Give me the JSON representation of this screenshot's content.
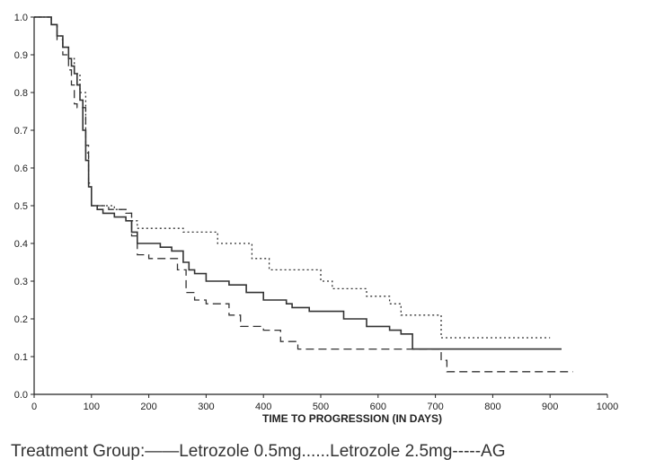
{
  "chart_data": {
    "type": "line",
    "xlabel": "TIME TO PROGRESSION (IN DAYS)",
    "ylabel": "",
    "xlim": [
      0,
      1000
    ],
    "ylim": [
      0.0,
      1.0
    ],
    "xticks": [
      "0",
      "100",
      "200",
      "300",
      "400",
      "500",
      "600",
      "700",
      "800",
      "900",
      "1000"
    ],
    "yticks": [
      "0.0",
      "0.1",
      "0.2",
      "0.3",
      "0.4",
      "0.5",
      "0.6",
      "0.7",
      "0.8",
      "0.9",
      "1.0"
    ],
    "grid": false,
    "step": true,
    "legend_text": "Treatment Group:——Letrozole 0.5mg......Letrozole 2.5mg-----AG",
    "series": [
      {
        "name": "Letrozole 0.5mg",
        "style": "solid",
        "x": [
          0,
          20,
          30,
          40,
          50,
          60,
          65,
          70,
          75,
          80,
          85,
          90,
          95,
          100,
          110,
          120,
          130,
          140,
          150,
          160,
          170,
          180,
          200,
          220,
          240,
          260,
          270,
          280,
          300,
          340,
          370,
          400,
          440,
          450,
          480,
          540,
          580,
          620,
          640,
          660,
          920
        ],
        "y": [
          1.0,
          1.0,
          0.98,
          0.95,
          0.92,
          0.89,
          0.87,
          0.85,
          0.82,
          0.78,
          0.7,
          0.62,
          0.55,
          0.5,
          0.49,
          0.48,
          0.48,
          0.47,
          0.47,
          0.46,
          0.43,
          0.4,
          0.4,
          0.39,
          0.38,
          0.35,
          0.33,
          0.32,
          0.3,
          0.29,
          0.27,
          0.25,
          0.24,
          0.23,
          0.22,
          0.2,
          0.18,
          0.17,
          0.16,
          0.12,
          0.12
        ]
      },
      {
        "name": "Letrozole 2.5mg",
        "style": "dotted",
        "x": [
          0,
          20,
          30,
          40,
          50,
          60,
          70,
          80,
          90,
          95,
          100,
          120,
          140,
          160,
          170,
          180,
          260,
          320,
          380,
          410,
          460,
          500,
          520,
          580,
          620,
          640,
          700,
          710,
          900
        ],
        "y": [
          1.0,
          1.0,
          0.98,
          0.95,
          0.92,
          0.89,
          0.85,
          0.8,
          0.64,
          0.55,
          0.5,
          0.5,
          0.49,
          0.48,
          0.46,
          0.44,
          0.43,
          0.4,
          0.36,
          0.33,
          0.33,
          0.3,
          0.28,
          0.26,
          0.24,
          0.21,
          0.21,
          0.15,
          0.15
        ]
      },
      {
        "name": "AG",
        "style": "dashed",
        "x": [
          0,
          20,
          30,
          40,
          50,
          60,
          65,
          70,
          75,
          80,
          90,
          95,
          100,
          130,
          160,
          170,
          180,
          200,
          250,
          265,
          280,
          300,
          340,
          360,
          400,
          430,
          460,
          470,
          710,
          720,
          940
        ],
        "y": [
          1.0,
          1.0,
          0.98,
          0.94,
          0.9,
          0.86,
          0.82,
          0.77,
          0.76,
          0.76,
          0.66,
          0.56,
          0.5,
          0.49,
          0.48,
          0.42,
          0.37,
          0.36,
          0.33,
          0.27,
          0.25,
          0.24,
          0.21,
          0.18,
          0.17,
          0.14,
          0.12,
          0.12,
          0.09,
          0.06,
          0.06
        ]
      }
    ]
  }
}
